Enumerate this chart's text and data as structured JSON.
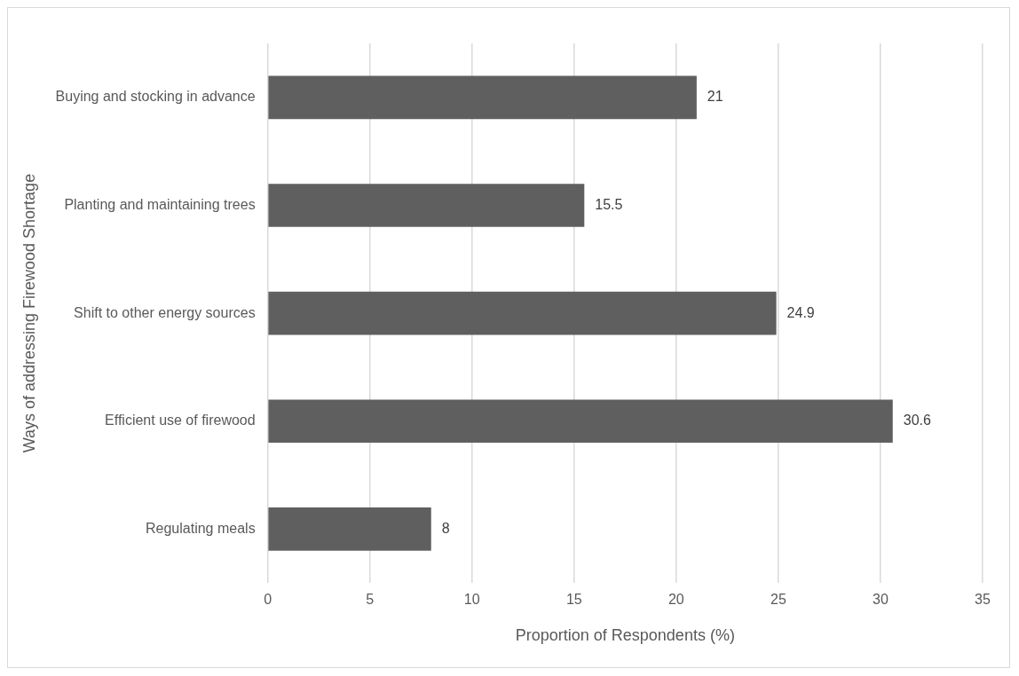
{
  "chart_data": {
    "type": "bar",
    "orientation": "horizontal",
    "xlabel": "Proportion of Respondents (%)",
    "ylabel": "Ways of addressing Firewood Shortage",
    "categories": [
      "Buying and stocking in advance",
      "Planting and maintaining trees",
      "Shift to other energy sources",
      "Efficient use of firewood",
      "Regulating meals"
    ],
    "values": [
      21,
      15.5,
      24.9,
      30.6,
      8
    ],
    "color": "#5f5f5f",
    "xlim": [
      0,
      35
    ],
    "xticks": [
      0,
      5,
      10,
      15,
      20,
      25,
      30,
      35
    ],
    "grid": "x",
    "data_labels": true,
    "legend": false
  }
}
